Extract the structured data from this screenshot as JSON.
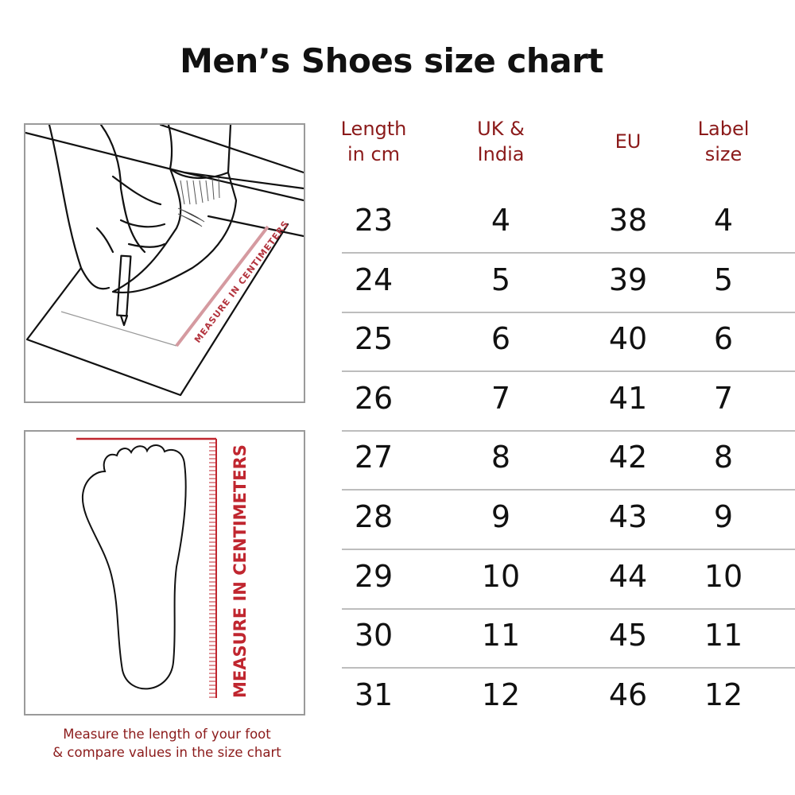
{
  "title": "Men’s Shoes size chart",
  "illustration": {
    "ruler_label_top": "MEASURE IN CENTIMETERS",
    "ruler_label_side": "MEASURE IN CENTIMETERS",
    "accent_color": "#8b1a1a"
  },
  "caption": {
    "line1": "Measure the length of your foot",
    "line2": "& compare values in the size chart"
  },
  "chart_data": {
    "type": "table",
    "title": "Men’s Shoes size chart",
    "columns": [
      {
        "line1": "Length",
        "line2": "in cm"
      },
      {
        "line1": "UK &",
        "line2": "India"
      },
      {
        "line1": "EU",
        "line2": ""
      },
      {
        "line1": "Label",
        "line2": "size"
      }
    ],
    "rows": [
      [
        "23",
        "4",
        "38",
        "4"
      ],
      [
        "24",
        "5",
        "39",
        "5"
      ],
      [
        "25",
        "6",
        "40",
        "6"
      ],
      [
        "26",
        "7",
        "41",
        "7"
      ],
      [
        "27",
        "8",
        "42",
        "8"
      ],
      [
        "28",
        "9",
        "43",
        "9"
      ],
      [
        "29",
        "10",
        "44",
        "10"
      ],
      [
        "30",
        "11",
        "45",
        "11"
      ],
      [
        "31",
        "12",
        "46",
        "12"
      ]
    ]
  }
}
